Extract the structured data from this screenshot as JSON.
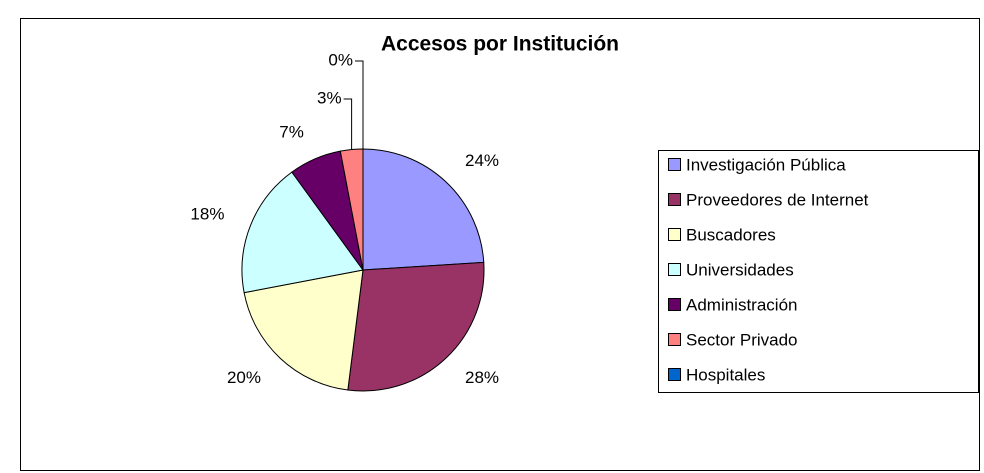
{
  "chart_data": {
    "type": "pie",
    "title": "Accesos por Institución",
    "categories": [
      "Investigación Pública",
      "Proveedores de Internet",
      "Buscadores",
      "Universidades",
      "Administración",
      "Sector Privado",
      "Hospitales"
    ],
    "values": [
      24,
      28,
      20,
      18,
      7,
      3,
      0
    ],
    "value_labels": [
      "24%",
      "28%",
      "20%",
      "18%",
      "7%",
      "3%",
      "0%"
    ],
    "colors": [
      "#9999ff",
      "#993366",
      "#ffffcc",
      "#ccffff",
      "#660066",
      "#ff8080",
      "#0066cc"
    ],
    "legend": "right"
  }
}
